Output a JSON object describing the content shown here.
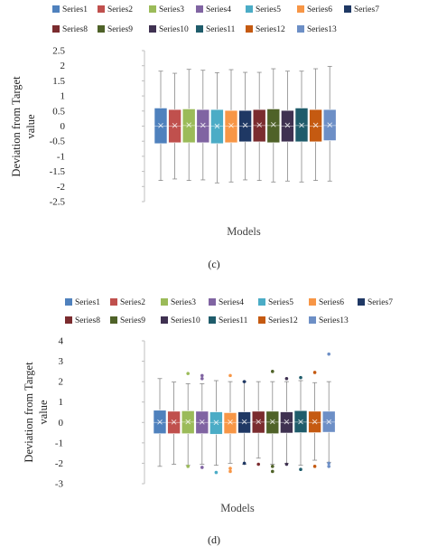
{
  "series_colors": [
    "#4f81bd",
    "#c0504d",
    "#9bbb59",
    "#8064a2",
    "#4bacc6",
    "#f79646",
    "#1f3864",
    "#7b2c2f",
    "#4f6228",
    "#3f3151",
    "#1f5c6b",
    "#c55a11",
    "#6d8fc6"
  ],
  "chart_data": [
    {
      "type": "box",
      "panel_label": "(c)",
      "xlabel": "Models",
      "ylabel": "Deviation from Target value",
      "ylabel_lines": [
        "Deviation from Target",
        "value"
      ],
      "ylim": [
        -2.5,
        2.5
      ],
      "yticks": [
        -2.5,
        -2,
        -1.5,
        -1,
        -0.5,
        0,
        0.5,
        1,
        1.5,
        2,
        2.5
      ],
      "ytick_labels": [
        "-2.5",
        "-2",
        "-1.5",
        "-1",
        "-0.5",
        "0",
        "0.5",
        "1",
        "1.5",
        "2",
        "2.5"
      ],
      "legend_position": "top",
      "grid": false,
      "series": [
        {
          "name": "Series1",
          "min": -1.8,
          "q1": -0.58,
          "median": 0.0,
          "mean": 0.02,
          "q3": 0.6,
          "max": 1.82,
          "outliers": []
        },
        {
          "name": "Series2",
          "min": -1.75,
          "q1": -0.55,
          "median": 0.0,
          "mean": 0.02,
          "q3": 0.55,
          "max": 1.75,
          "outliers": []
        },
        {
          "name": "Series3",
          "min": -1.8,
          "q1": -0.55,
          "median": 0.02,
          "mean": 0.04,
          "q3": 0.57,
          "max": 1.88,
          "outliers": []
        },
        {
          "name": "Series4",
          "min": -1.78,
          "q1": -0.55,
          "median": 0.0,
          "mean": 0.03,
          "q3": 0.55,
          "max": 1.85,
          "outliers": []
        },
        {
          "name": "Series5",
          "min": -1.88,
          "q1": -0.58,
          "median": 0.0,
          "mean": 0.0,
          "q3": 0.55,
          "max": 1.77,
          "outliers": []
        },
        {
          "name": "Series6",
          "min": -1.85,
          "q1": -0.55,
          "median": 0.0,
          "mean": 0.02,
          "q3": 0.52,
          "max": 1.87,
          "outliers": []
        },
        {
          "name": "Series7",
          "min": -1.78,
          "q1": -0.52,
          "median": 0.0,
          "mean": 0.03,
          "q3": 0.52,
          "max": 1.78,
          "outliers": []
        },
        {
          "name": "Series8",
          "min": -1.8,
          "q1": -0.52,
          "median": 0.02,
          "mean": 0.04,
          "q3": 0.55,
          "max": 1.78,
          "outliers": []
        },
        {
          "name": "Series9",
          "min": -1.85,
          "q1": -0.55,
          "median": 0.02,
          "mean": 0.05,
          "q3": 0.57,
          "max": 1.9,
          "outliers": []
        },
        {
          "name": "Series10",
          "min": -1.82,
          "q1": -0.52,
          "median": 0.0,
          "mean": 0.03,
          "q3": 0.52,
          "max": 1.82,
          "outliers": []
        },
        {
          "name": "Series11",
          "min": -1.85,
          "q1": -0.52,
          "median": 0.02,
          "mean": 0.03,
          "q3": 0.6,
          "max": 1.82,
          "outliers": []
        },
        {
          "name": "Series12",
          "min": -1.8,
          "q1": -0.52,
          "median": 0.0,
          "mean": 0.03,
          "q3": 0.55,
          "max": 1.9,
          "outliers": []
        },
        {
          "name": "Series13",
          "min": -1.82,
          "q1": -0.48,
          "median": 0.02,
          "mean": 0.04,
          "q3": 0.55,
          "max": 1.98,
          "outliers": []
        }
      ]
    },
    {
      "type": "box",
      "panel_label": "(d)",
      "xlabel": "Models",
      "ylabel": "Deviation from Target value",
      "ylabel_lines": [
        "Deviation from Target",
        "value"
      ],
      "ylim": [
        -3,
        4
      ],
      "yticks": [
        -3,
        -2,
        -1,
        0,
        1,
        2,
        3,
        4
      ],
      "ytick_labels": [
        "-3",
        "-2",
        "-1",
        "0",
        "1",
        "2",
        "3",
        "4"
      ],
      "legend_position": "top",
      "grid": false,
      "series": [
        {
          "name": "Series1",
          "min": -2.15,
          "q1": -0.55,
          "median": 0.0,
          "mean": 0.02,
          "q3": 0.6,
          "max": 2.15,
          "outliers": []
        },
        {
          "name": "Series2",
          "min": -2.05,
          "q1": -0.55,
          "median": 0.0,
          "mean": 0.02,
          "q3": 0.55,
          "max": 1.98,
          "outliers": []
        },
        {
          "name": "Series3",
          "min": -2.1,
          "q1": -0.55,
          "median": 0.02,
          "mean": 0.03,
          "q3": 0.57,
          "max": 1.9,
          "outliers": [
            -2.15,
            2.4
          ]
        },
        {
          "name": "Series4",
          "min": -2.05,
          "q1": -0.55,
          "median": 0.0,
          "mean": 0.02,
          "q3": 0.55,
          "max": 1.9,
          "outliers": [
            -2.2,
            2.15,
            2.3
          ]
        },
        {
          "name": "Series5",
          "min": -2.1,
          "q1": -0.58,
          "median": 0.0,
          "mean": 0.0,
          "q3": 0.52,
          "max": 2.05,
          "outliers": [
            -2.45
          ]
        },
        {
          "name": "Series6",
          "min": -2.0,
          "q1": -0.55,
          "median": 0.0,
          "mean": 0.02,
          "q3": 0.48,
          "max": 2.0,
          "outliers": [
            -2.25,
            -2.4,
            2.3
          ]
        },
        {
          "name": "Series7",
          "min": -2.05,
          "q1": -0.52,
          "median": 0.0,
          "mean": 0.03,
          "q3": 0.52,
          "max": 2.0,
          "outliers": [
            -2.0,
            2.0
          ]
        },
        {
          "name": "Series8",
          "min": -1.75,
          "q1": -0.52,
          "median": 0.02,
          "mean": 0.04,
          "q3": 0.55,
          "max": 2.0,
          "outliers": [
            -2.05
          ]
        },
        {
          "name": "Series9",
          "min": -2.05,
          "q1": -0.55,
          "median": 0.02,
          "mean": 0.04,
          "q3": 0.55,
          "max": 2.0,
          "outliers": [
            -2.15,
            -2.4,
            2.5
          ]
        },
        {
          "name": "Series10",
          "min": -2.0,
          "q1": -0.52,
          "median": 0.0,
          "mean": 0.03,
          "q3": 0.52,
          "max": 2.0,
          "outliers": [
            -2.05,
            2.15
          ]
        },
        {
          "name": "Series11",
          "min": -2.1,
          "q1": -0.5,
          "median": 0.02,
          "mean": 0.03,
          "q3": 0.58,
          "max": 2.05,
          "outliers": [
            -2.3,
            2.2
          ]
        },
        {
          "name": "Series12",
          "min": -1.85,
          "q1": -0.5,
          "median": 0.0,
          "mean": 0.03,
          "q3": 0.55,
          "max": 1.95,
          "outliers": [
            -2.15,
            2.45
          ]
        },
        {
          "name": "Series13",
          "min": -1.95,
          "q1": -0.48,
          "median": 0.02,
          "mean": 0.03,
          "q3": 0.55,
          "max": 2.0,
          "outliers": [
            -2.0,
            -2.15,
            3.35
          ]
        }
      ]
    }
  ]
}
